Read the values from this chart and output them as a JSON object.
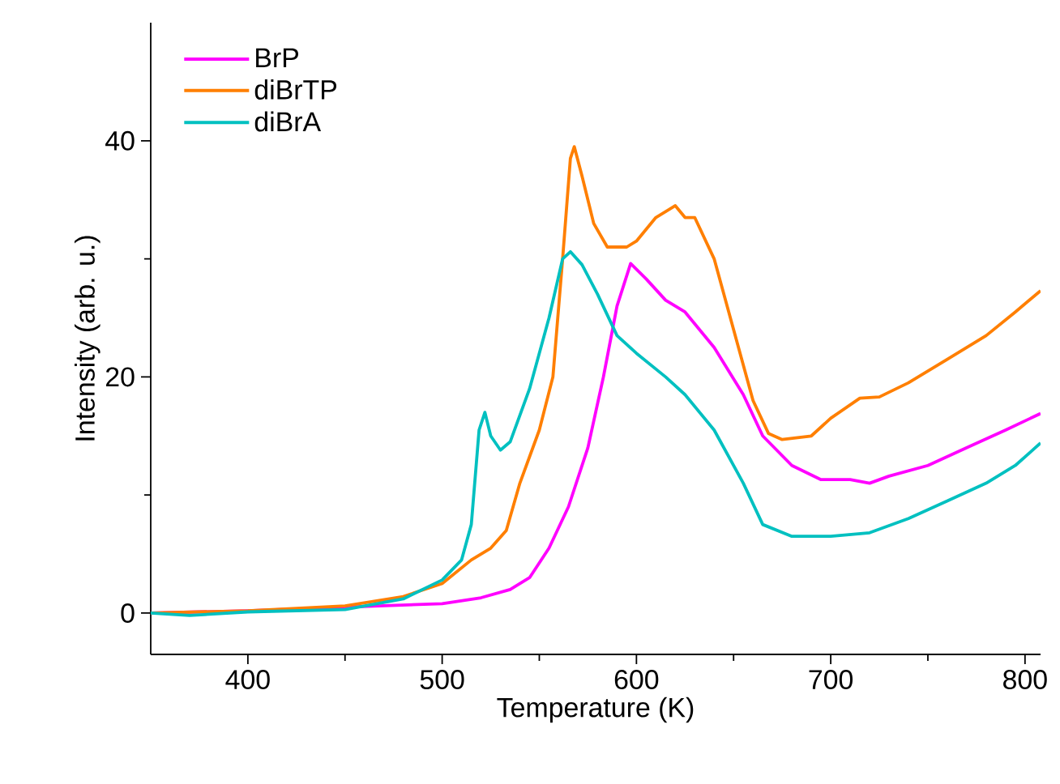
{
  "chart_data": {
    "type": "line",
    "xlabel": "Temperature (K)",
    "ylabel": "Intensity (arb. u.)",
    "xlim": [
      350,
      808
    ],
    "ylim": [
      -3.5,
      50
    ],
    "xticks": [
      400,
      {
        "value": 450,
        "label": null
      },
      500,
      {
        "value": 550,
        "label": null
      },
      600,
      {
        "value": 650,
        "label": null
      },
      700,
      {
        "value": 750,
        "label": null
      },
      800
    ],
    "yticks": [
      0,
      {
        "value": 10,
        "label": null
      },
      20,
      {
        "value": 30,
        "label": null
      },
      40
    ],
    "legend": "top left",
    "grid": false,
    "marker": "none",
    "line_style": "solid",
    "series": [
      {
        "name": "BrP",
        "color": "#ff00ff",
        "x": [
          350,
          400,
          450,
          500,
          520,
          535,
          545,
          555,
          565,
          575,
          583,
          590,
          597,
          605,
          615,
          625,
          640,
          655,
          665,
          680,
          695,
          710,
          720,
          730,
          750,
          770,
          790,
          808
        ],
        "values": [
          0,
          0.2,
          0.5,
          0.8,
          1.3,
          2,
          3,
          5.5,
          9,
          14,
          20,
          26,
          29.6,
          28.3,
          26.5,
          25.5,
          22.5,
          18.5,
          15,
          12.5,
          11.3,
          11.3,
          11,
          11.6,
          12.5,
          14,
          15.5,
          16.9
        ]
      },
      {
        "name": "diBrTP",
        "color": "#ff7f00",
        "x": [
          350,
          400,
          450,
          480,
          500,
          515,
          525,
          533,
          540,
          550,
          557,
          562,
          566,
          568,
          572,
          578,
          585,
          595,
          600,
          610,
          620,
          625,
          630,
          640,
          650,
          660,
          668,
          675,
          690,
          700,
          715,
          725,
          740,
          760,
          780,
          795,
          808
        ],
        "values": [
          0,
          0.2,
          0.6,
          1.4,
          2.5,
          4.5,
          5.5,
          7,
          11,
          15.5,
          20,
          30,
          38.5,
          39.5,
          37,
          33,
          31,
          31,
          31.5,
          33.5,
          34.5,
          33.5,
          33.5,
          30,
          24,
          18,
          15.2,
          14.7,
          15,
          16.5,
          18.2,
          18.3,
          19.5,
          21.5,
          23.5,
          25.5,
          27.3
        ]
      },
      {
        "name": "diBrA",
        "color": "#00c0c0",
        "x": [
          350,
          370,
          400,
          450,
          480,
          500,
          510,
          515,
          519,
          522,
          525,
          530,
          535,
          545,
          555,
          562,
          566,
          572,
          580,
          590,
          600,
          615,
          625,
          640,
          655,
          665,
          680,
          700,
          720,
          740,
          760,
          780,
          795,
          808
        ],
        "values": [
          0,
          -0.2,
          0.1,
          0.3,
          1.2,
          2.8,
          4.5,
          7.5,
          15.5,
          17,
          15,
          13.8,
          14.5,
          19,
          25,
          30,
          30.6,
          29.5,
          27,
          23.5,
          22,
          20,
          18.5,
          15.5,
          11,
          7.5,
          6.5,
          6.5,
          6.8,
          8,
          9.5,
          11,
          12.5,
          14.4
        ]
      }
    ]
  }
}
